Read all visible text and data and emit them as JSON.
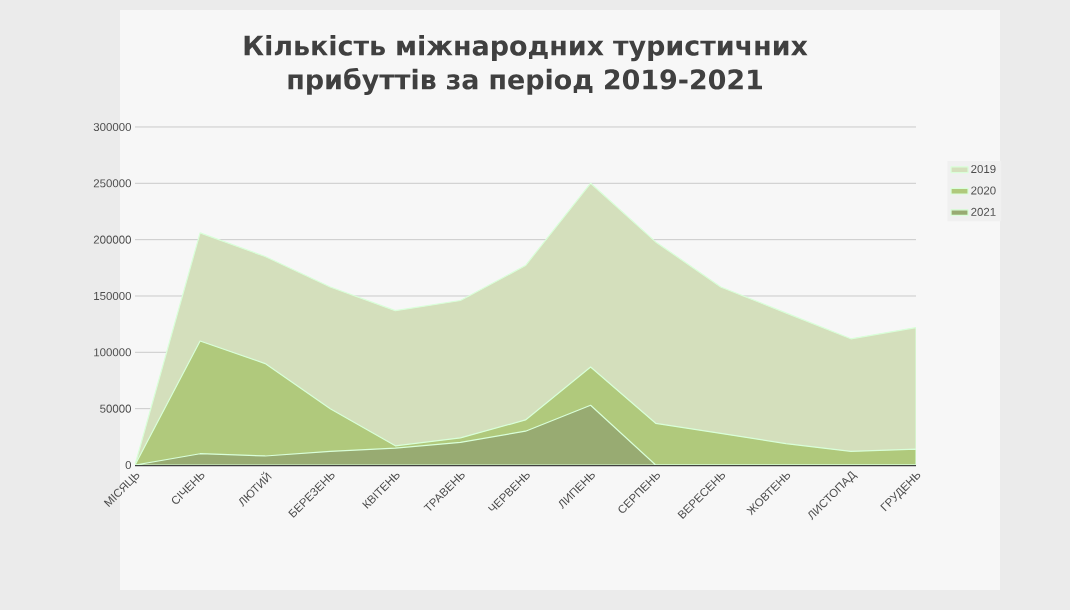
{
  "chart_data": {
    "type": "area",
    "title": "Кількість міжнародних туристичних прибуттів за період 2019-2021",
    "categories": [
      "МІСЯЦЬ",
      "СІЧЕНЬ",
      "ЛЮТИЙ",
      "БЕРЕЗЕНЬ",
      "КВІТЕНЬ",
      "ТРАВЕНЬ",
      "ЧЕРВЕНЬ",
      "ЛИПЕНЬ",
      "СЕРПЕНЬ",
      "ВЕРЕСЕНЬ",
      "ЖОВТЕНЬ",
      "ЛИСТОПАД",
      "ГРУДЕНЬ"
    ],
    "series": [
      {
        "name": "2019",
        "color": "#d4dfbc",
        "values": [
          0,
          206000,
          185000,
          158000,
          137000,
          146000,
          177000,
          250000,
          198000,
          158000,
          135000,
          112000,
          122000
        ]
      },
      {
        "name": "2020",
        "color": "#b0c97c",
        "values": [
          0,
          110000,
          90000,
          50000,
          17000,
          24000,
          40000,
          87000,
          37000,
          28000,
          19000,
          12000,
          14000
        ]
      },
      {
        "name": "2021",
        "color": "#98ab72",
        "values": [
          0,
          10000,
          8000,
          12000,
          15000,
          20000,
          30000,
          53000,
          0,
          0,
          0,
          0,
          0
        ]
      }
    ],
    "ylim": [
      0,
      300000
    ],
    "yticks": [
      0,
      50000,
      100000,
      150000,
      200000,
      250000,
      300000
    ],
    "grid": "y",
    "legend": "right"
  }
}
